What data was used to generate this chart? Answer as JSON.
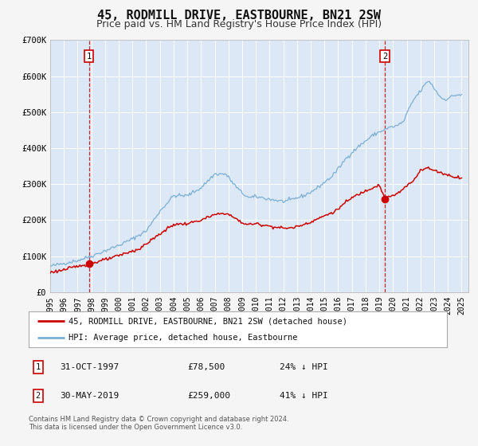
{
  "title": "45, RODMILL DRIVE, EASTBOURNE, BN21 2SW",
  "subtitle": "Price paid vs. HM Land Registry's House Price Index (HPI)",
  "title_fontsize": 11,
  "subtitle_fontsize": 9,
  "bg_color": "#f5f5f5",
  "plot_bg_color": "#dce8f5",
  "grid_color": "#ffffff",
  "ylim": [
    0,
    700000
  ],
  "xlim_start": 1995.0,
  "xlim_end": 2025.5,
  "yticks": [
    0,
    100000,
    200000,
    300000,
    400000,
    500000,
    600000,
    700000
  ],
  "ytick_labels": [
    "£0",
    "£100K",
    "£200K",
    "£300K",
    "£400K",
    "£500K",
    "£600K",
    "£700K"
  ],
  "xticks": [
    1995,
    1996,
    1997,
    1998,
    1999,
    2000,
    2001,
    2002,
    2003,
    2004,
    2005,
    2006,
    2007,
    2008,
    2009,
    2010,
    2011,
    2012,
    2013,
    2014,
    2015,
    2016,
    2017,
    2018,
    2019,
    2020,
    2021,
    2022,
    2023,
    2024,
    2025
  ],
  "red_line_color": "#cc0000",
  "blue_line_color": "#7bafd4",
  "marker1_date": 1997.83,
  "marker1_value": 78500,
  "marker2_date": 2019.41,
  "marker2_value": 259000,
  "vline1_x": 1997.83,
  "vline2_x": 2019.41,
  "legend_label_red": "45, RODMILL DRIVE, EASTBOURNE, BN21 2SW (detached house)",
  "legend_label_blue": "HPI: Average price, detached house, Eastbourne",
  "table_row1": [
    "1",
    "31-OCT-1997",
    "£78,500",
    "24% ↓ HPI"
  ],
  "table_row2": [
    "2",
    "30-MAY-2019",
    "£259,000",
    "41% ↓ HPI"
  ],
  "footer_line1": "Contains HM Land Registry data © Crown copyright and database right 2024.",
  "footer_line2": "This data is licensed under the Open Government Licence v3.0."
}
